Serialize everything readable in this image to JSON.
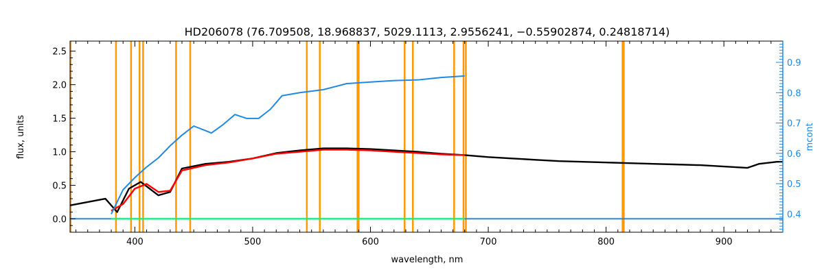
{
  "chart_data": {
    "type": "line",
    "title": "HD206078    (76.709508, 18.968837, 5029.1113, 2.9556241, −0.55902874, 0.24818714)",
    "xlabel": "wavelength, nm",
    "ylabel": "flux, units",
    "y2label": "mcont",
    "xlim": [
      345,
      950
    ],
    "ylim": [
      -0.2,
      2.65
    ],
    "y2lim": [
      0.34,
      0.97
    ],
    "x_ticks": [
      400,
      500,
      600,
      700,
      800,
      900
    ],
    "y_ticks": [
      0.0,
      0.5,
      1.0,
      1.5,
      2.0,
      2.5
    ],
    "y_tick_labels": [
      "0.0",
      "0.5",
      "1.0",
      "1.5",
      "2.0",
      "2.5"
    ],
    "y2_ticks": [
      0.4,
      0.5,
      0.6,
      0.7,
      0.8,
      0.9
    ],
    "y2_tick_labels": [
      "0.4",
      "0.5",
      "0.6",
      "0.7",
      "0.8",
      "0.9"
    ],
    "colors": {
      "observed": "#000000",
      "model": "#ff0000",
      "residual": "#22ee77",
      "mcont": "#1e88e5",
      "mask": "#ff9900",
      "right_axis": "#1e88e5"
    },
    "mask_lines": [
      345.5,
      384,
      396.8,
      404,
      407,
      435,
      447,
      546,
      557,
      589,
      590,
      629,
      636,
      671,
      679,
      681,
      814,
      815
    ],
    "series": [
      {
        "key": "observed",
        "x": [
          345,
          360,
          375,
          385,
          395,
          405,
          420,
          430,
          440,
          460,
          480,
          500,
          520,
          540,
          560,
          580,
          600,
          620,
          640,
          660,
          680,
          700,
          720,
          740,
          760,
          780,
          800,
          820,
          840,
          860,
          880,
          900,
          920,
          930,
          945,
          950
        ],
        "y": [
          0.2,
          0.25,
          0.3,
          0.1,
          0.45,
          0.55,
          0.35,
          0.4,
          0.75,
          0.82,
          0.85,
          0.9,
          0.98,
          1.02,
          1.05,
          1.05,
          1.04,
          1.02,
          1.0,
          0.97,
          0.95,
          0.92,
          0.9,
          0.88,
          0.86,
          0.85,
          0.84,
          0.83,
          0.82,
          0.81,
          0.8,
          0.78,
          0.76,
          0.82,
          0.85,
          0.85
        ]
      },
      {
        "key": "model",
        "x": [
          380,
          390,
          400,
          410,
          420,
          430,
          440,
          460,
          480,
          500,
          520,
          540,
          560,
          580,
          600,
          620,
          640,
          660,
          680
        ],
        "y": [
          0.12,
          0.22,
          0.45,
          0.52,
          0.4,
          0.42,
          0.72,
          0.8,
          0.84,
          0.9,
          0.97,
          1.0,
          1.03,
          1.03,
          1.02,
          1.0,
          0.98,
          0.96,
          0.95
        ]
      },
      {
        "key": "residual",
        "x": [
          380,
          400,
          420,
          440,
          460,
          480,
          500,
          520,
          540,
          560,
          580,
          600,
          620,
          640,
          660,
          680
        ],
        "y": [
          0.0,
          0.0,
          0.0,
          0.0,
          0.0,
          0.0,
          0.0,
          0.0,
          0.0,
          0.0,
          0.0,
          0.0,
          0.0,
          0.0,
          0.0,
          0.0
        ]
      },
      {
        "key": "mcont",
        "axis": "right",
        "x": [
          380,
          390,
          400,
          410,
          420,
          430,
          440,
          450,
          460,
          465,
          475,
          485,
          495,
          505,
          515,
          525,
          540,
          560,
          580,
          600,
          620,
          640,
          660,
          680
        ],
        "y": [
          0.4,
          0.48,
          0.52,
          0.555,
          0.585,
          0.625,
          0.66,
          0.69,
          0.675,
          0.667,
          0.695,
          0.728,
          0.715,
          0.715,
          0.745,
          0.79,
          0.8,
          0.81,
          0.83,
          0.835,
          0.84,
          0.842,
          0.85,
          0.855
        ]
      }
    ],
    "baseline": {
      "key": "mcont_baseline",
      "y": 0.0,
      "x": [
        345,
        950
      ]
    }
  }
}
